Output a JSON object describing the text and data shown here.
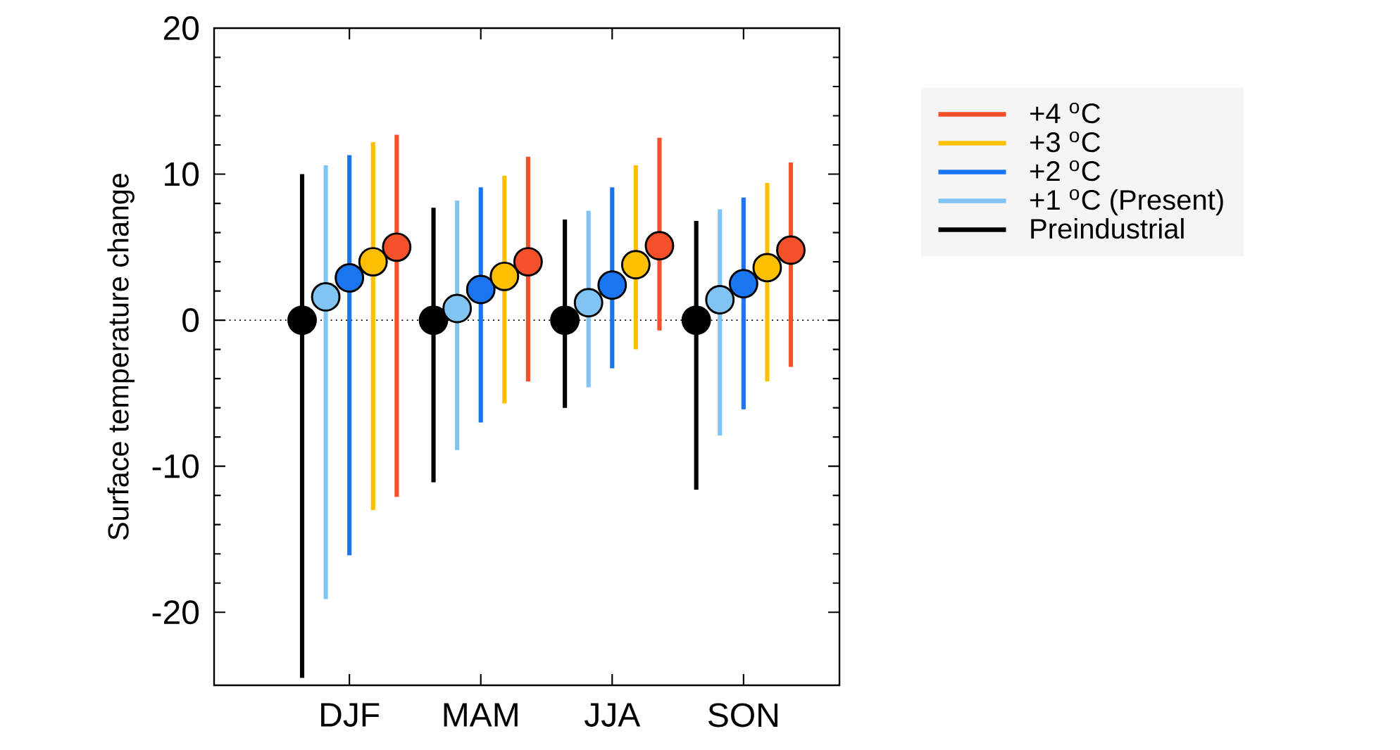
{
  "chart_data": {
    "type": "scatter",
    "ylabel": "Surface temperature change",
    "categories": [
      "DJF",
      "MAM",
      "JJA",
      "SON"
    ],
    "series": [
      {
        "name": "Preindustrial",
        "color": "#000000",
        "values": [
          0,
          0,
          0,
          0
        ],
        "errors": [
          [
            -24.5,
            10.0
          ],
          [
            -11.1,
            7.7
          ],
          [
            -6.0,
            6.9
          ],
          [
            -11.6,
            6.8
          ]
        ]
      },
      {
        "name": "+1 $^{o}$C (Present)",
        "color": "#80c4f4",
        "values": [
          1.6,
          0.8,
          1.2,
          1.4
        ],
        "errors": [
          [
            -19.1,
            10.6
          ],
          [
            -8.9,
            8.2
          ],
          [
            -4.6,
            7.5
          ],
          [
            -7.9,
            7.6
          ]
        ]
      },
      {
        "name": "+2 $^{o}$C",
        "color": "#1a75f0",
        "values": [
          2.9,
          2.1,
          2.4,
          2.5
        ],
        "errors": [
          [
            -16.1,
            11.3
          ],
          [
            -7.0,
            9.1
          ],
          [
            -3.3,
            9.1
          ],
          [
            -6.1,
            8.4
          ]
        ]
      },
      {
        "name": "+3 $^{o}$C",
        "color": "#fcc000",
        "values": [
          4.0,
          3.0,
          3.8,
          3.6
        ],
        "errors": [
          [
            -13.0,
            12.2
          ],
          [
            -5.7,
            9.9
          ],
          [
            -2.0,
            10.6
          ],
          [
            -4.2,
            9.4
          ]
        ]
      },
      {
        "name": "+4 $^{o}$C",
        "color": "#f4502a",
        "values": [
          5.0,
          4.0,
          5.1,
          4.8
        ],
        "errors": [
          [
            -12.1,
            12.7
          ],
          [
            -4.2,
            11.2
          ],
          [
            -0.7,
            12.5
          ],
          [
            -3.2,
            10.8
          ]
        ]
      }
    ],
    "ylim": [
      -25,
      20
    ],
    "yticks": [
      -20,
      -10,
      0,
      10,
      20
    ],
    "ref_lines": [
      {
        "axis": "y",
        "value": 0,
        "line_style": "dotted",
        "color": "#000000"
      }
    ],
    "grid": false,
    "legend": "right",
    "marker": "circle"
  }
}
